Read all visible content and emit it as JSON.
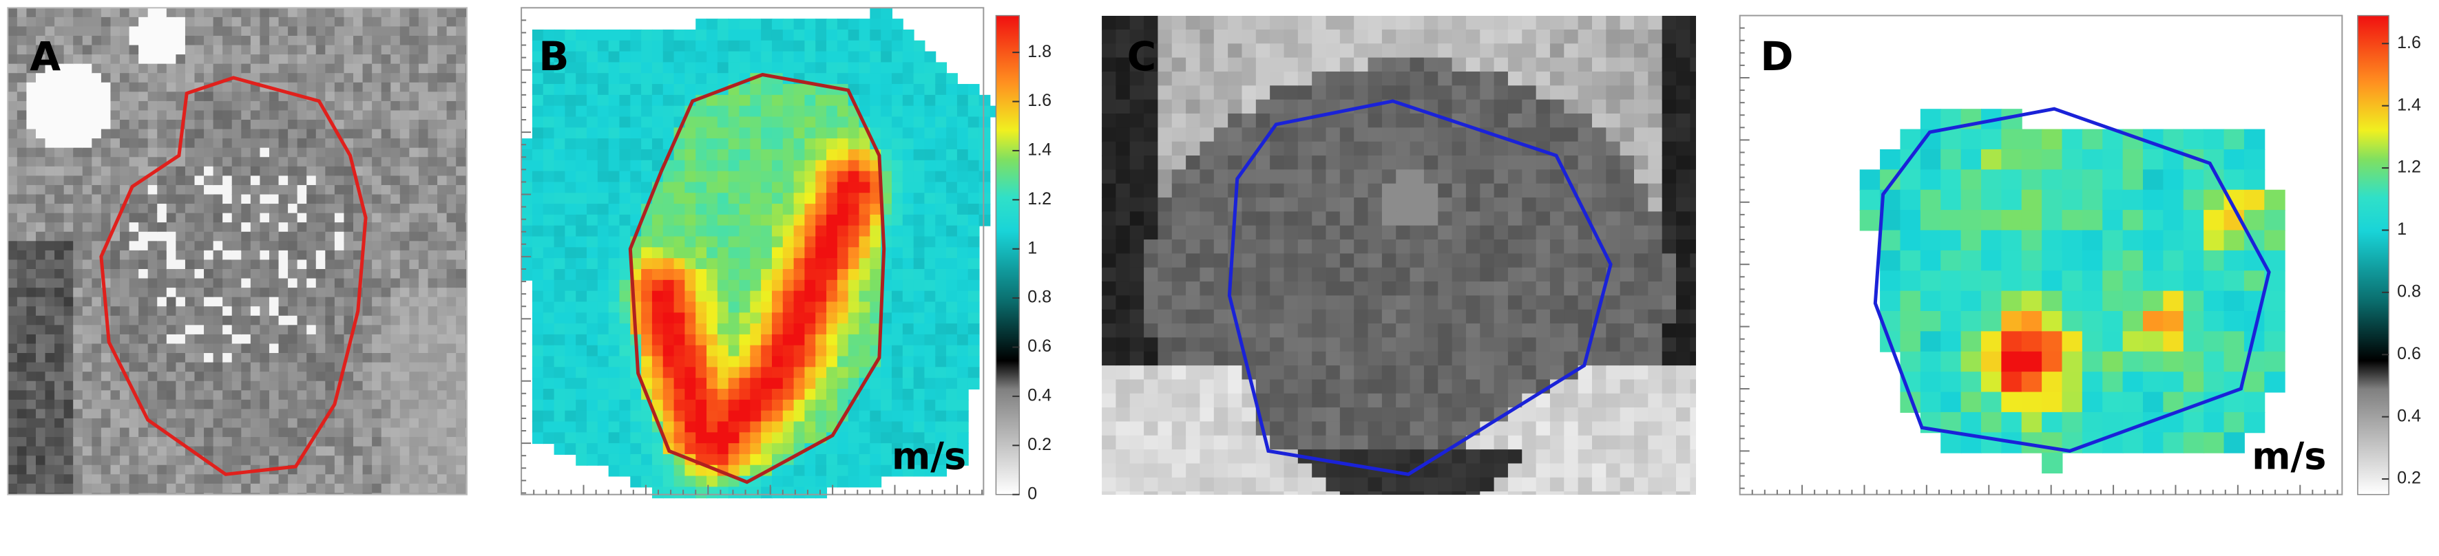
{
  "panels": [
    {
      "label": "A"
    },
    {
      "label": "B",
      "unit": "m/s",
      "colorbar": {
        "lim": [
          0,
          1.95
        ],
        "ticks": [
          0,
          0.2,
          0.4,
          0.6,
          0.8,
          1,
          1.2,
          1.4,
          1.6,
          1.8
        ]
      }
    },
    {
      "label": "C"
    },
    {
      "label": "D",
      "unit": "m/s",
      "colorbar": {
        "lim": [
          0.15,
          1.69
        ],
        "ticks": [
          0.2,
          0.4,
          0.6,
          0.8,
          1,
          1.2,
          1.4,
          1.6
        ]
      }
    }
  ]
}
